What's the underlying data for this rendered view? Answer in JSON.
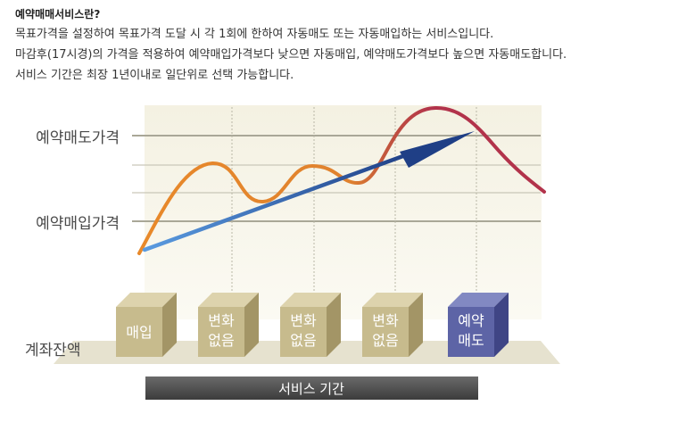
{
  "intro": {
    "title": "예약매매서비스란?",
    "lines": [
      "목표가격을 설정하여 목표가격 도달 시 각 1회에 한하여 자동매도 또는 자동매입하는 서비스입니다.",
      "마감후(17시경)의 가격을 적용하여 예약매입가격보다 낮으면 자동매입, 예약매도가격보다 높으면 자동매도합니다.",
      "서비스 기간은 최장 1년이내로 일단위로 선택 가능합니다."
    ]
  },
  "diagram": {
    "levels": {
      "sell": "예약매도가격",
      "buy": "예약매입가격",
      "balance": "계좌잔액"
    },
    "boxes": [
      {
        "line1": "매입",
        "line2": ""
      },
      {
        "line1": "변화",
        "line2": "없음"
      },
      {
        "line1": "변화",
        "line2": "없음"
      },
      {
        "line1": "변화",
        "line2": "없음"
      },
      {
        "line1": "예약",
        "line2": "매도"
      }
    ],
    "period_bar": "서비스 기간",
    "colors": {
      "price_curve_up": "#e8892a",
      "price_curve_down": "#b2334b",
      "trend_arrow_start": "#5a9be0",
      "trend_arrow_end": "#1f3f86",
      "box_normal": "#c7bb8d",
      "box_sell": "#5d64a6",
      "period_bar": "#4a4a4a"
    }
  }
}
